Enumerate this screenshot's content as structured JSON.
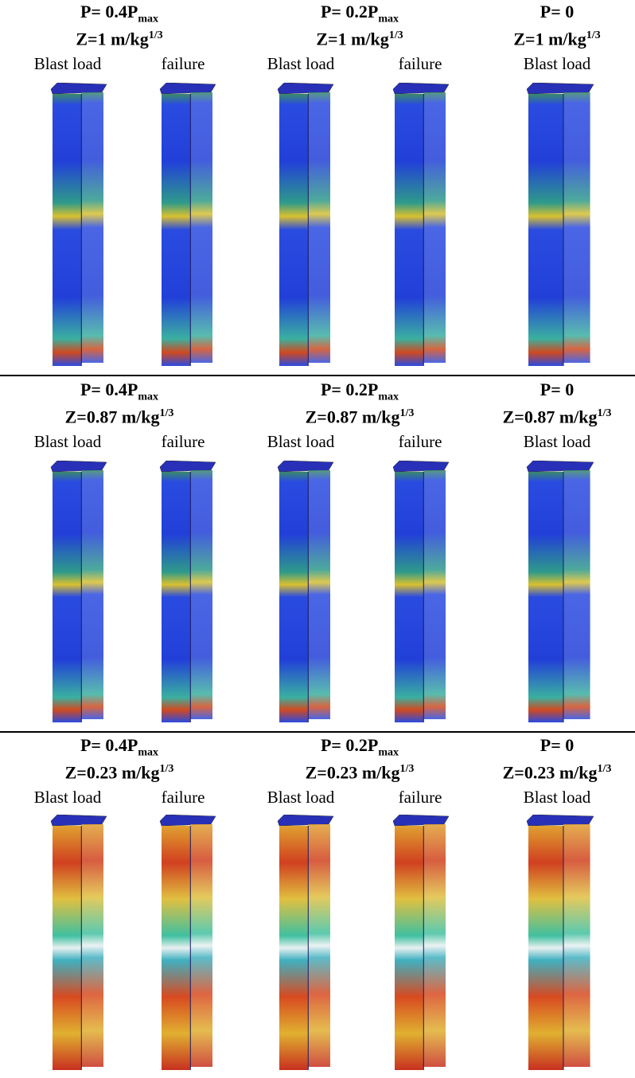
{
  "rows": [
    {
      "cells": [
        {
          "load": "P= 0.4P",
          "load_sub": "max",
          "distance": "Z=1 m/kg",
          "distance_sup": "1/3",
          "labels": [
            "Blast load",
            "failure"
          ]
        },
        {
          "load": "P= 0.2P",
          "load_sub": "max",
          "distance": "Z=1 m/kg",
          "distance_sup": "1/3",
          "labels": [
            "Blast load",
            "failure"
          ]
        },
        {
          "load": "P= 0",
          "distance": "Z=1 m/kg",
          "distance_sup": "1/3",
          "labels": [
            "Blast load"
          ]
        }
      ]
    },
    {
      "cells": [
        {
          "load": "P= 0.4P",
          "load_sub": "max",
          "distance": "Z=0.87 m/kg",
          "distance_sup": "1/3",
          "labels": [
            "Blast load",
            "failure"
          ]
        },
        {
          "load": "P= 0.2P",
          "load_sub": "max",
          "distance": "Z=0.87 m/kg",
          "distance_sup": "1/3",
          "labels": [
            "Blast load",
            "failure"
          ]
        },
        {
          "load": "P= 0",
          "distance": "Z=0.87 m/kg",
          "distance_sup": "1/3",
          "labels": [
            "Blast load"
          ]
        }
      ]
    },
    {
      "cells": [
        {
          "load": "P= 0.4P",
          "load_sub": "max",
          "distance": "Z=0.23 m/kg",
          "distance_sup": "1/3",
          "labels": [
            "Blast load",
            "failure"
          ]
        },
        {
          "load": "P= 0.2P",
          "load_sub": "max",
          "distance": "Z=0.23 m/kg",
          "distance_sup": "1/3",
          "labels": [
            "Blast load",
            "failure"
          ]
        },
        {
          "load": "P= 0",
          "distance": "Z=0.23 m/kg",
          "distance_sup": "1/3",
          "labels": [
            "Blast load"
          ]
        }
      ]
    }
  ]
}
